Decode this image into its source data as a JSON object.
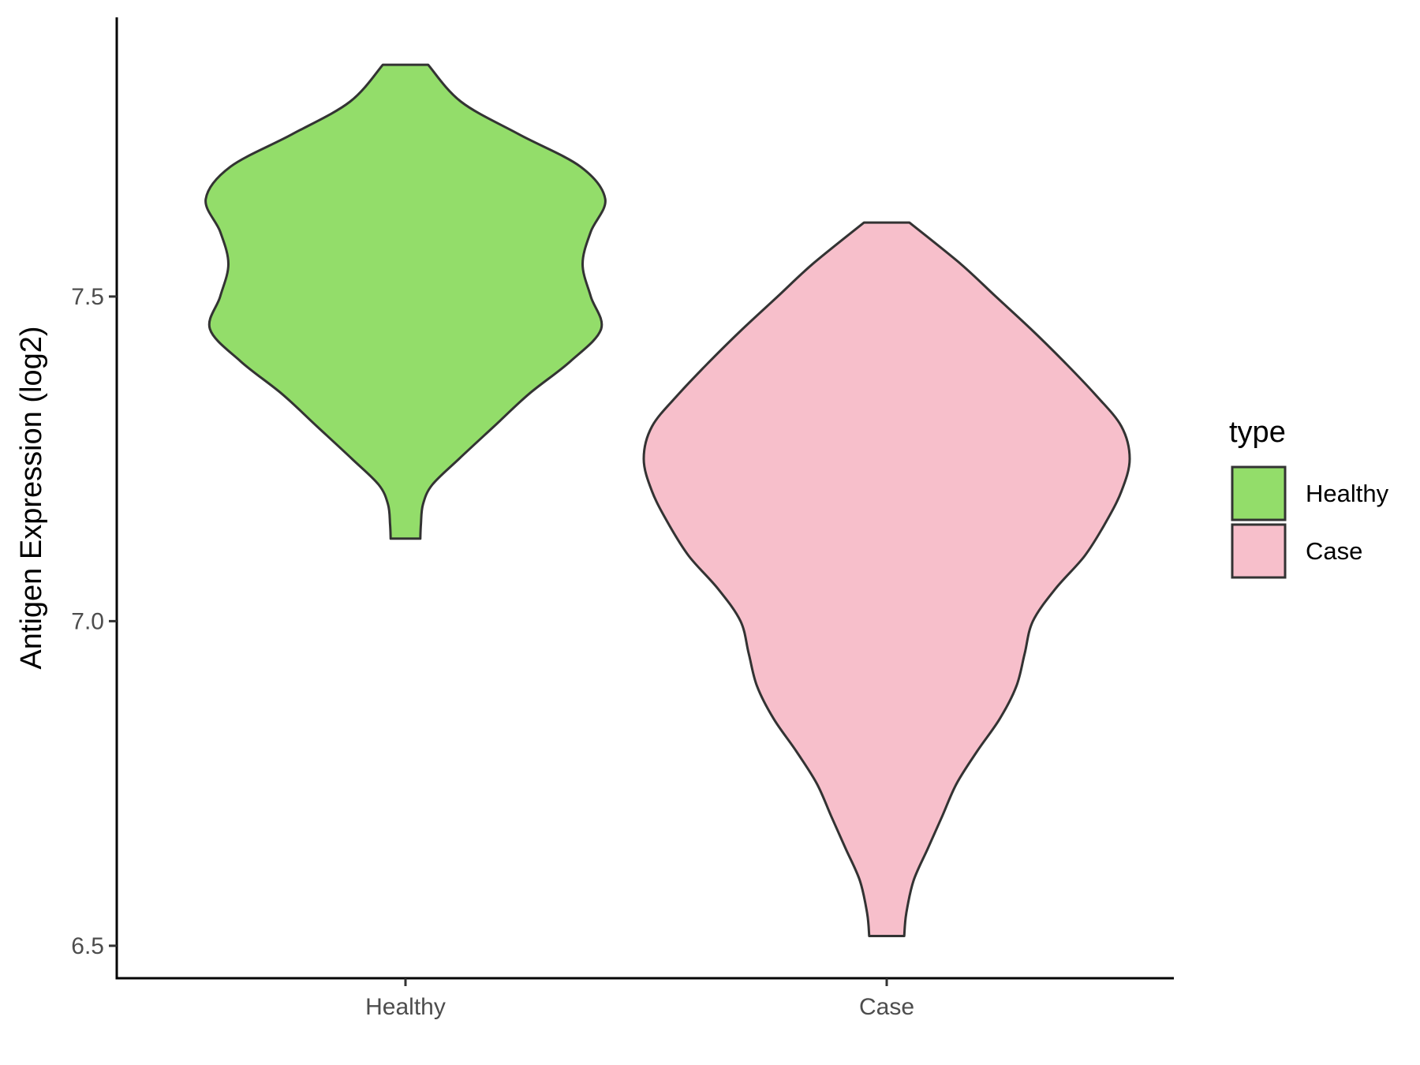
{
  "chart_data": {
    "type": "violin",
    "ylabel": "Antigen Expression (log2)",
    "xlabel": "",
    "ylim": [
      6.45,
      7.93
    ],
    "y_ticks": [
      "6.5",
      "7.0",
      "7.5"
    ],
    "y_tick_values": [
      6.5,
      7.0,
      7.5
    ],
    "categories": [
      "Healthy",
      "Case"
    ],
    "grid": false,
    "legend": {
      "title": "type",
      "placement": "right",
      "entries": [
        "Healthy",
        "Case"
      ]
    },
    "series": [
      {
        "name": "Healthy",
        "color": "#93dd6a",
        "min": 7.127,
        "max": 7.857,
        "density": [
          [
            7.127,
            0.072
          ],
          [
            7.15,
            0.075
          ],
          [
            7.18,
            0.085
          ],
          [
            7.21,
            0.13
          ],
          [
            7.25,
            0.26
          ],
          [
            7.3,
            0.43
          ],
          [
            7.35,
            0.6
          ],
          [
            7.4,
            0.8
          ],
          [
            7.45,
            0.95
          ],
          [
            7.5,
            0.9
          ],
          [
            7.55,
            0.86
          ],
          [
            7.6,
            0.9
          ],
          [
            7.65,
            0.97
          ],
          [
            7.7,
            0.85
          ],
          [
            7.75,
            0.55
          ],
          [
            7.8,
            0.27
          ],
          [
            7.857,
            0.11
          ]
        ]
      },
      {
        "name": "Case",
        "color": "#f7bfcb",
        "min": 6.515,
        "max": 7.614,
        "density": [
          [
            6.515,
            0.085
          ],
          [
            6.55,
            0.095
          ],
          [
            6.6,
            0.13
          ],
          [
            6.65,
            0.2
          ],
          [
            6.7,
            0.27
          ],
          [
            6.75,
            0.34
          ],
          [
            6.8,
            0.44
          ],
          [
            6.85,
            0.55
          ],
          [
            6.9,
            0.63
          ],
          [
            6.95,
            0.67
          ],
          [
            7.0,
            0.71
          ],
          [
            7.05,
            0.82
          ],
          [
            7.1,
            0.96
          ],
          [
            7.15,
            1.06
          ],
          [
            7.2,
            1.14
          ],
          [
            7.25,
            1.18
          ],
          [
            7.3,
            1.14
          ],
          [
            7.35,
            1.01
          ],
          [
            7.4,
            0.86
          ],
          [
            7.45,
            0.7
          ],
          [
            7.5,
            0.53
          ],
          [
            7.55,
            0.36
          ],
          [
            7.614,
            0.11
          ]
        ]
      }
    ]
  }
}
